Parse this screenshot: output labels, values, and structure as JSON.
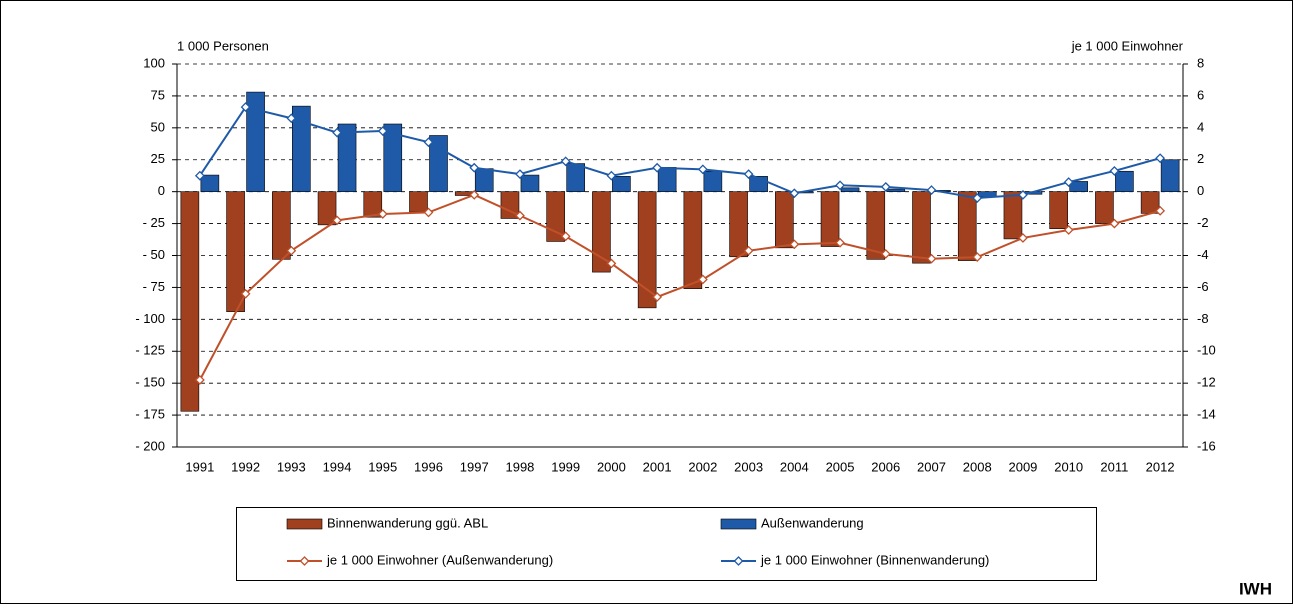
{
  "chart_data": {
    "type": "bar",
    "y_label": "1 000 Personen",
    "y2_label": "je 1 000 Einwohner",
    "source": "IWH",
    "categories": [
      "1991",
      "1992",
      "1993",
      "1994",
      "1995",
      "1996",
      "1997",
      "1998",
      "1999",
      "2000",
      "2001",
      "2002",
      "2003",
      "2004",
      "2005",
      "2006",
      "2007",
      "2008",
      "2009",
      "2010",
      "2011",
      "2012"
    ],
    "series": [
      {
        "name": "Binnenwanderung ggü. ABL",
        "type": "bar",
        "color": "#a0401f",
        "values": [
          -172,
          -94,
          -53,
          -26,
          -20,
          -16,
          -3,
          -21,
          -39,
          -63,
          -91,
          -76,
          -51,
          -44,
          -43,
          -53,
          -56,
          -54,
          -37,
          -29,
          -25,
          -17
        ]
      },
      {
        "name": "Außenwanderung",
        "type": "bar",
        "color": "#1f5aa8",
        "values": [
          13,
          78,
          67,
          53,
          53,
          44,
          18,
          13,
          22,
          12,
          19,
          16,
          12,
          -1,
          3,
          2,
          1,
          -4,
          -2,
          8,
          16,
          25
        ]
      },
      {
        "name": "je 1 000 Einwohner (Außenwanderung)",
        "type": "line",
        "axis": "y2",
        "color": "#c0502a",
        "values": [
          -11.8,
          -6.4,
          -3.7,
          -1.8,
          -1.4,
          -1.3,
          -0.2,
          -1.5,
          -2.8,
          -4.5,
          -6.6,
          -5.5,
          -3.7,
          -3.3,
          -3.2,
          -3.9,
          -4.2,
          -4.1,
          -2.9,
          -2.4,
          -2.0,
          -1.2
        ]
      },
      {
        "name": "je 1 000 Einwohner (Binnenwanderung)",
        "type": "line",
        "axis": "y2",
        "color": "#1f5aa8",
        "values": [
          1.0,
          5.3,
          4.6,
          3.7,
          3.8,
          3.1,
          1.5,
          1.1,
          1.9,
          1.0,
          1.5,
          1.4,
          1.1,
          -0.1,
          0.4,
          0.3,
          0.1,
          -0.4,
          -0.2,
          0.6,
          1.3,
          2.1
        ]
      }
    ],
    "ylim": [
      -200,
      100
    ],
    "yticks": [
      100,
      75,
      50,
      25,
      0,
      {
        "value": -25,
        "label": "- 25"
      },
      {
        "value": -50,
        "label": "- 50"
      },
      {
        "value": -75,
        "label": "- 75"
      },
      {
        "value": -100,
        "label": "- 100"
      },
      {
        "value": -125,
        "label": "- 125"
      },
      {
        "value": -150,
        "label": "- 150"
      },
      {
        "value": -175,
        "label": "- 175"
      },
      {
        "value": -200,
        "label": "- 200"
      }
    ],
    "y2lim": [
      -16,
      8
    ],
    "y2ticks": [
      8,
      6,
      4,
      2,
      0,
      -2,
      -4,
      -6,
      -8,
      -10,
      -12,
      -14,
      -16
    ],
    "grid": true
  }
}
